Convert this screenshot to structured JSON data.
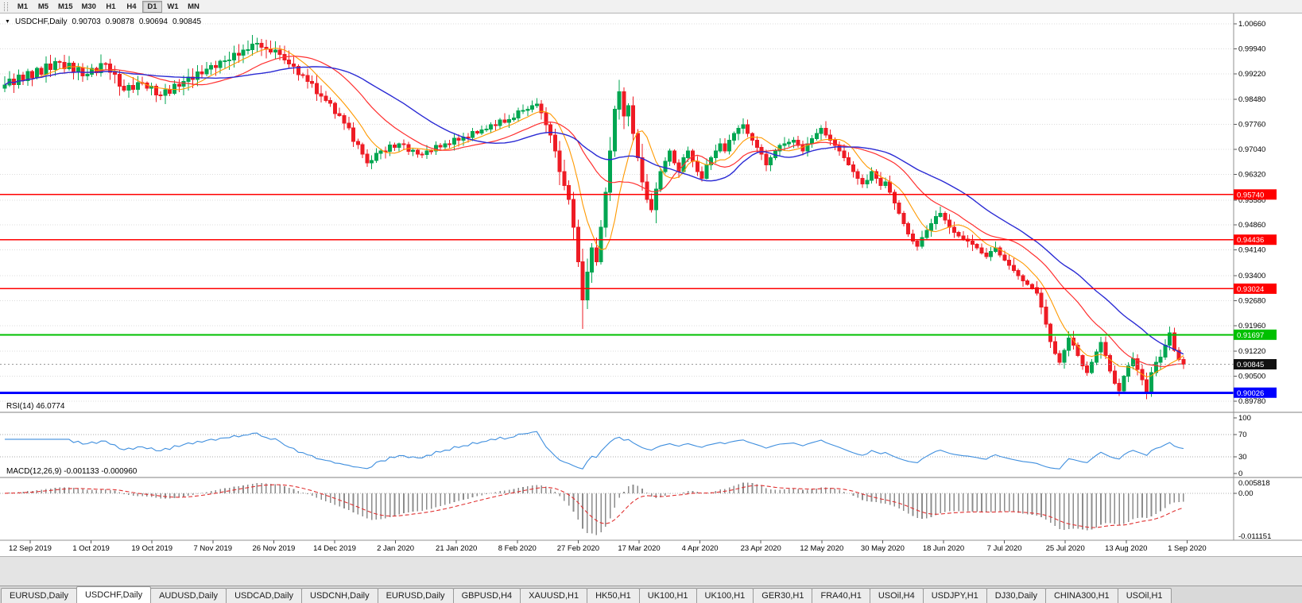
{
  "toolbar": {
    "timeframes": [
      "M1",
      "M5",
      "M15",
      "M30",
      "H1",
      "H4",
      "D1",
      "W1",
      "MN"
    ],
    "active": "D1"
  },
  "chart": {
    "header": {
      "symbol": "USDCHF,Daily",
      "open": "0.90703",
      "high": "0.90878",
      "low": "0.90694",
      "close": "0.90845"
    },
    "current_price_label": "0.90845",
    "colors": {
      "bull": "#00a651",
      "bear": "#ee1c25",
      "grid": "#dcdcdc",
      "axis_text": "#000000",
      "macd_hist": "#8c8c8c",
      "macd_signal": "#e03030",
      "divider": "#c0c0c0",
      "axis_line": "#909090"
    }
  },
  "rsi": {
    "label": "RSI(14) 46.0774"
  },
  "macd": {
    "label": "MACD(12,26,9) -0.001133 -0.000960"
  },
  "tabs": {
    "items": [
      "EURUSD,Daily",
      "USDCHF,Daily",
      "AUDUSD,Daily",
      "USDCAD,Daily",
      "USDCNH,Daily",
      "EURUSD,Daily",
      "GBPUSD,H4",
      "XAUUSD,H1",
      "HK50,H1",
      "UK100,H1",
      "UK100,H1",
      "GER30,H1",
      "FRA40,H1",
      "USOil,H4",
      "USDJPY,H1",
      "DJ30,Daily",
      "CHINA300,H1",
      "USOil,H1"
    ],
    "active_index": 1
  },
  "chart_data": {
    "type": "candlestick",
    "symbol": "USDCHF",
    "timeframe": "Daily",
    "price_range": {
      "top": 1.0066,
      "bottom": 0.8978
    },
    "price_axis_ticks": [
      "1.00660",
      "0.99940",
      "0.99220",
      "0.98480",
      "0.97760",
      "0.97040",
      "0.96320",
      "0.95580",
      "0.94860",
      "0.94140",
      "0.93400",
      "0.92680",
      "0.91960",
      "0.91220",
      "0.90500",
      "0.89780"
    ],
    "x_tick_labels": [
      "12 Sep 2019",
      "1 Oct 2019",
      "19 Oct 2019",
      "7 Nov 2019",
      "26 Nov 2019",
      "14 Dec 2019",
      "2 Jan 2020",
      "21 Jan 2020",
      "8 Feb 2020",
      "27 Feb 2020",
      "17 Mar 2020",
      "4 Apr 2020",
      "23 Apr 2020",
      "12 May 2020",
      "30 May 2020",
      "18 Jun 2020",
      "7 Jul 2020",
      "25 Jul 2020",
      "13 Aug 2020",
      "1 Sep 2020"
    ],
    "first_open": 0.988,
    "closes": [
      0.989,
      0.9907,
      0.9891,
      0.9918,
      0.9902,
      0.9929,
      0.991,
      0.9938,
      0.9921,
      0.995,
      0.9934,
      0.9957,
      0.9955,
      0.9937,
      0.9953,
      0.9926,
      0.994,
      0.9916,
      0.992,
      0.9938,
      0.9925,
      0.9951,
      0.995,
      0.9926,
      0.9921,
      0.9886,
      0.9875,
      0.9888,
      0.9877,
      0.9896,
      0.9895,
      0.988,
      0.9886,
      0.9861,
      0.986,
      0.9876,
      0.9866,
      0.9892,
      0.9886,
      0.99,
      0.9913,
      0.9906,
      0.9927,
      0.9922,
      0.9935,
      0.9946,
      0.994,
      0.9958,
      0.996,
      0.9962,
      0.9981,
      0.9975,
      0.999,
      0.9992,
      1.0008,
      1.001,
      0.9998,
      0.9993,
      0.9985,
      0.999,
      0.9978,
      0.9962,
      0.995,
      0.9944,
      0.9919,
      0.9917,
      0.99,
      0.9894,
      0.9865,
      0.9857,
      0.9845,
      0.9837,
      0.9807,
      0.9802,
      0.978,
      0.9766,
      0.9727,
      0.9718,
      0.969,
      0.9665,
      0.9672,
      0.9693,
      0.97,
      0.9698,
      0.9717,
      0.971,
      0.972,
      0.9718,
      0.9698,
      0.9702,
      0.969,
      0.9689,
      0.97,
      0.9699,
      0.9716,
      0.9711,
      0.972,
      0.9719,
      0.9736,
      0.9731,
      0.974,
      0.9739,
      0.9756,
      0.9751,
      0.976,
      0.9763,
      0.9775,
      0.9773,
      0.9789,
      0.9782,
      0.979,
      0.9795,
      0.9815,
      0.9816,
      0.982,
      0.983,
      0.9835,
      0.981,
      0.9775,
      0.9745,
      0.97,
      0.964,
      0.96,
      0.956,
      0.948,
      0.938,
      0.927,
      0.935,
      0.942,
      0.938,
      0.948,
      0.958,
      0.97,
      0.982,
      0.987,
      0.98,
      0.983,
      0.975,
      0.968,
      0.961,
      0.956,
      0.953,
      0.959,
      0.964,
      0.967,
      0.97,
      0.9665,
      0.964,
      0.968,
      0.97,
      0.967,
      0.964,
      0.962,
      0.966,
      0.968,
      0.97,
      0.972,
      0.97,
      0.973,
      0.975,
      0.9765,
      0.9775,
      0.975,
      0.973,
      0.971,
      0.969,
      0.966,
      0.968,
      0.97,
      0.9715,
      0.972,
      0.9725,
      0.973,
      0.9715,
      0.97,
      0.972,
      0.9735,
      0.975,
      0.9765,
      0.9745,
      0.973,
      0.9715,
      0.97,
      0.968,
      0.966,
      0.964,
      0.962,
      0.9605,
      0.9615,
      0.964,
      0.962,
      0.96,
      0.961,
      0.958,
      0.955,
      0.952,
      0.949,
      0.946,
      0.944,
      0.9425,
      0.945,
      0.947,
      0.949,
      0.951,
      0.952,
      0.95,
      0.948,
      0.9465,
      0.9455,
      0.9445,
      0.944,
      0.943,
      0.942,
      0.9405,
      0.9395,
      0.941,
      0.942,
      0.94,
      0.9385,
      0.937,
      0.9355,
      0.934,
      0.9325,
      0.9315,
      0.9305,
      0.929,
      0.925,
      0.92,
      0.915,
      0.9115,
      0.909,
      0.9125,
      0.916,
      0.914,
      0.911,
      0.908,
      0.906,
      0.909,
      0.912,
      0.9148,
      0.911,
      0.9065,
      0.903,
      0.9008,
      0.905,
      0.908,
      0.91,
      0.907,
      0.904,
      0.9005,
      0.906,
      0.909,
      0.9105,
      0.914,
      0.9175,
      0.9125,
      0.9098,
      0.90845
    ],
    "extra_wicks": {
      "54": {
        "high": 1.0034
      },
      "79": {
        "low": 0.9655
      },
      "126": {
        "low": 0.9186
      },
      "134": {
        "high": 0.9905
      },
      "243": {
        "low": 0.8997
      },
      "249": {
        "low": 0.8984
      },
      "254": {
        "high": 0.9193
      }
    },
    "last_ohlc": {
      "open": 0.90703,
      "high": 0.90878,
      "low": 0.90694,
      "close": 0.90845
    },
    "current_price": 0.90845,
    "horizontal_levels": [
      {
        "value": 0.9574,
        "label": "0.95740",
        "color": "#ff0000",
        "width": 1.4
      },
      {
        "value": 0.94436,
        "label": "0.94436",
        "color": "#ff0000",
        "width": 1.4
      },
      {
        "value": 0.93024,
        "label": "0.93024",
        "color": "#ff0000",
        "width": 1.4
      },
      {
        "value": 0.91697,
        "label": "0.91697",
        "color": "#00c000",
        "width": 2
      },
      {
        "value": 0.90026,
        "label": "0.90026",
        "color": "#0000ff",
        "width": 3
      }
    ],
    "indicators": {
      "moving_averages": [
        {
          "period": 8,
          "color": "#ff9900",
          "width": 1.1
        },
        {
          "period": 20,
          "color": "#ff3030",
          "width": 1.2
        },
        {
          "period": 34,
          "color": "#2a2ad4",
          "width": 1.4
        }
      ],
      "rsi": {
        "period": 14,
        "value": 46.0774,
        "levels": [
          100,
          70,
          30,
          0
        ],
        "dotted": [
          70,
          30
        ],
        "color": "#3e8ede"
      },
      "macd": {
        "fast": 12,
        "slow": 26,
        "signal": 9,
        "value": -0.001133,
        "signal_value": -0.00096,
        "axis": [
          "0.005818",
          "0.00",
          "-0.011151"
        ]
      }
    }
  }
}
